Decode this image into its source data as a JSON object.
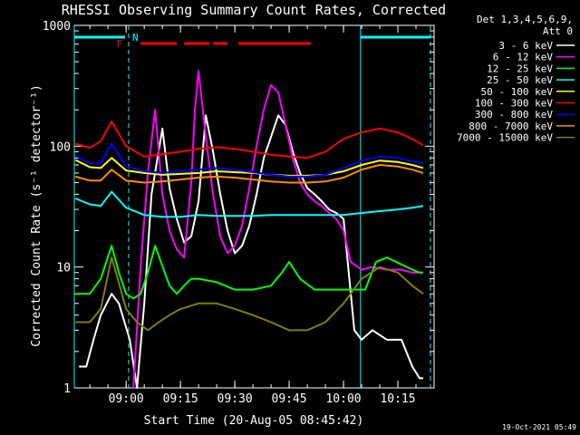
{
  "chart_data": {
    "type": "line",
    "title": "RHESSI Observing Summary Count Rates, Corrected",
    "xlabel": "Start Time (20-Aug-05 08:45:42)",
    "ylabel": "Corrected Count Rate (s⁻¹ detector⁻¹)",
    "y_scale": "log",
    "ylim": [
      1,
      1000
    ],
    "xlim": [
      "08:45:42",
      "10:25:00"
    ],
    "x_ticks": [
      "09:00",
      "09:15",
      "09:30",
      "09:45",
      "10:00",
      "10:15"
    ],
    "y_ticks": [
      "1",
      "10",
      "100",
      "1000"
    ],
    "legend": {
      "header": [
        "Det 1,3,4,5,6,9,",
        "Att 0"
      ],
      "placement": "right"
    },
    "series": [
      {
        "name": "3 - 6 keV",
        "color": "#ffffff",
        "x": [
          "08:47",
          "08:49",
          "08:51",
          "08:53",
          "08:56",
          "08:58",
          "09:01",
          "09:03",
          "09:05",
          "09:07",
          "09:10",
          "09:12",
          "09:14",
          "09:16",
          "09:18",
          "09:20",
          "09:22",
          "09:24",
          "09:26",
          "09:28",
          "09:30",
          "09:32",
          "09:34",
          "09:36",
          "09:38",
          "09:40",
          "09:42",
          "09:44",
          "09:46",
          "09:48",
          "09:50",
          "09:52",
          "09:54",
          "09:56",
          "09:58",
          "10:00",
          "10:03",
          "10:05",
          "10:08",
          "10:12",
          "10:16",
          "10:19",
          "10:21",
          "10:22"
        ],
        "y": [
          1.5,
          1.5,
          2.5,
          4,
          6,
          5,
          2.5,
          1,
          5,
          40,
          140,
          45,
          25,
          16,
          18,
          35,
          180,
          90,
          40,
          20,
          13,
          15,
          22,
          40,
          80,
          120,
          180,
          150,
          90,
          60,
          45,
          40,
          35,
          30,
          28,
          25,
          3,
          2.5,
          3,
          2.5,
          2.5,
          1.5,
          1.2,
          1.2
        ]
      },
      {
        "name": "6 - 12 keV",
        "color": "#ff00ff",
        "x": [
          "09:02",
          "09:04",
          "09:06",
          "09:08",
          "09:10",
          "09:12",
          "09:14",
          "09:16",
          "09:18",
          "09:19",
          "09:20",
          "09:22",
          "09:24",
          "09:26",
          "09:28",
          "09:30",
          "09:32",
          "09:34",
          "09:36",
          "09:38",
          "09:40",
          "09:42",
          "09:44",
          "09:46",
          "09:48",
          "09:50",
          "09:52",
          "09:54",
          "09:56",
          "09:58",
          "10:00",
          "10:02",
          "10:05",
          "10:08",
          "10:12",
          "10:16",
          "10:19",
          "10:21",
          "10:22"
        ],
        "y": [
          1,
          10,
          60,
          200,
          40,
          20,
          14,
          12,
          50,
          200,
          420,
          120,
          40,
          18,
          13,
          15,
          22,
          45,
          100,
          200,
          320,
          280,
          150,
          80,
          50,
          40,
          35,
          32,
          28,
          25,
          20,
          11,
          9.5,
          10,
          9.5,
          9.5,
          9,
          9,
          9
        ]
      },
      {
        "name": "12 - 25 keV",
        "color": "#00ff00",
        "x": [
          "08:46",
          "08:50",
          "08:53",
          "08:56",
          "08:58",
          "09:00",
          "09:02",
          "09:04",
          "09:06",
          "09:08",
          "09:12",
          "09:14",
          "09:16",
          "09:18",
          "09:20",
          "09:25",
          "09:30",
          "09:35",
          "09:40",
          "09:43",
          "09:45",
          "09:48",
          "09:52",
          "09:56",
          "10:00",
          "10:03",
          "10:06",
          "10:09",
          "10:12",
          "10:16",
          "10:19",
          "10:21",
          "10:22"
        ],
        "y": [
          6,
          6,
          8,
          15,
          9,
          6,
          5.5,
          6,
          9,
          15,
          7,
          6,
          7,
          8,
          8,
          7.5,
          6.5,
          6.5,
          7,
          9,
          11,
          8,
          6.5,
          6.5,
          6.5,
          6.5,
          6.5,
          11,
          12,
          10.5,
          9.5,
          9,
          9
        ]
      },
      {
        "name": "25 - 50 keV",
        "color": "#00ffff",
        "x": [
          "08:46",
          "08:50",
          "08:53",
          "08:56",
          "09:00",
          "09:05",
          "09:10",
          "09:15",
          "09:20",
          "09:25",
          "09:30",
          "09:35",
          "09:40",
          "09:45",
          "09:50",
          "09:55",
          "10:00",
          "10:05",
          "10:10",
          "10:15",
          "10:19",
          "10:22"
        ],
        "y": [
          37,
          33,
          32,
          42,
          31,
          27,
          26,
          26,
          27,
          26.5,
          26.5,
          26.5,
          27,
          27,
          27,
          27,
          27,
          28,
          29,
          30,
          31,
          32
        ]
      },
      {
        "name": "50 - 100 keV",
        "color": "#ffff00",
        "x": [
          "08:46",
          "08:50",
          "08:53",
          "08:56",
          "09:00",
          "09:05",
          "09:10",
          "09:15",
          "09:20",
          "09:25",
          "09:30",
          "09:35",
          "09:40",
          "09:45",
          "09:50",
          "09:55",
          "10:00",
          "10:05",
          "10:10",
          "10:15",
          "10:19",
          "10:22"
        ],
        "y": [
          77,
          67,
          66,
          80,
          63,
          60,
          58,
          59,
          60,
          62,
          61,
          60,
          58,
          57,
          57,
          58,
          62,
          70,
          76,
          74,
          70,
          66
        ]
      },
      {
        "name": "100 - 300 keV",
        "color": "#ff0000",
        "x": [
          "08:46",
          "08:50",
          "08:53",
          "08:56",
          "09:00",
          "09:05",
          "09:10",
          "09:15",
          "09:20",
          "09:25",
          "09:30",
          "09:35",
          "09:40",
          "09:45",
          "09:50",
          "09:55",
          "10:00",
          "10:05",
          "10:10",
          "10:15",
          "10:19",
          "10:22"
        ],
        "y": [
          105,
          97,
          110,
          160,
          100,
          82,
          86,
          90,
          95,
          98,
          95,
          90,
          85,
          82,
          80,
          90,
          115,
          130,
          140,
          130,
          115,
          102
        ]
      },
      {
        "name": "300 - 800 keV",
        "color": "#0000ff",
        "x": [
          "08:46",
          "08:50",
          "08:53",
          "08:56",
          "09:00",
          "09:05",
          "09:10",
          "09:15",
          "09:20",
          "09:25",
          "09:30",
          "09:35",
          "09:40",
          "09:45",
          "09:50",
          "09:55",
          "10:00",
          "10:05",
          "10:10",
          "10:15",
          "10:19",
          "10:22"
        ],
        "y": [
          84,
          72,
          72,
          105,
          68,
          62,
          60,
          62,
          64,
          66,
          64,
          61,
          58,
          56,
          56,
          58,
          66,
          76,
          82,
          80,
          75,
          72
        ]
      },
      {
        "name": "800 - 7000 keV",
        "color": "#ff8c00",
        "x": [
          "08:46",
          "08:50",
          "08:53",
          "08:56",
          "09:00",
          "09:05",
          "09:10",
          "09:15",
          "09:20",
          "09:25",
          "09:30",
          "09:35",
          "09:40",
          "09:45",
          "09:50",
          "09:55",
          "10:00",
          "10:05",
          "10:10",
          "10:15",
          "10:19",
          "10:22"
        ],
        "y": [
          56,
          52,
          52,
          64,
          52,
          50,
          51,
          53,
          55,
          56,
          55,
          53,
          51,
          50,
          50,
          51,
          55,
          64,
          70,
          68,
          64,
          60
        ]
      },
      {
        "name": "7000 - 15000 keV",
        "color": "#808000",
        "x": [
          "08:46",
          "08:50",
          "08:53",
          "08:56",
          "09:00",
          "09:03",
          "09:06",
          "09:09",
          "09:12",
          "09:15",
          "09:20",
          "09:25",
          "09:30",
          "09:35",
          "09:40",
          "09:45",
          "09:50",
          "09:55",
          "10:00",
          "10:05",
          "10:10",
          "10:15",
          "10:19",
          "10:22"
        ],
        "y": [
          3.5,
          3.5,
          4.5,
          12,
          4.5,
          3.5,
          3,
          3.5,
          4,
          4.5,
          5,
          5,
          4.5,
          4,
          3.5,
          3,
          3,
          3.5,
          5,
          8,
          10,
          9,
          7,
          6
        ]
      }
    ],
    "annotations": {
      "flag_labels": [
        "F",
        "N"
      ],
      "night_bar_color": "#00ffff",
      "flare_bar_color": "#ff0000"
    }
  },
  "footer": {
    "timestamp": "19-Oct-2021 05:49"
  }
}
